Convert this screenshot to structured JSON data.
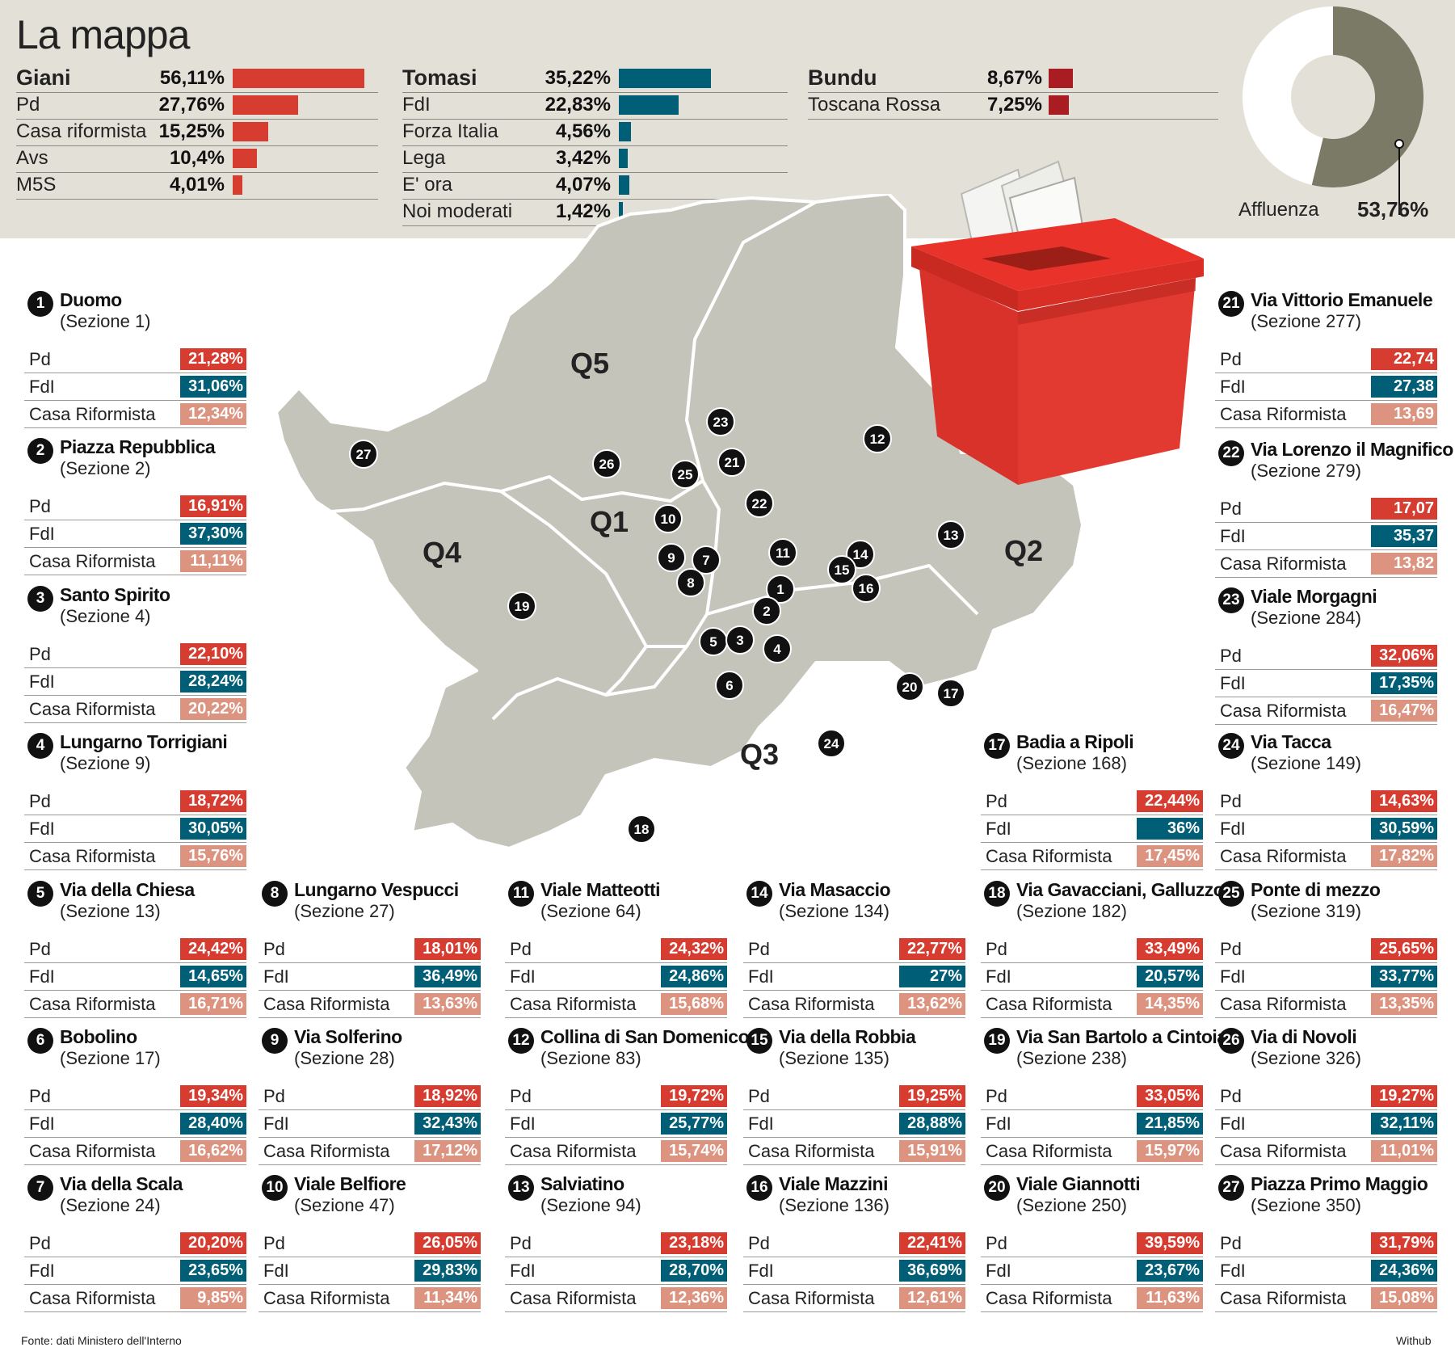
{
  "header": {
    "title": "La mappa"
  },
  "summary": {
    "groups": [
      {
        "rows": [
          {
            "name": "Giani",
            "pct": "56,11%",
            "value": 56.11,
            "lead": true
          },
          {
            "name": "Pd",
            "pct": "27,76%",
            "value": 27.76
          },
          {
            "name": "Casa riformista",
            "pct": "15,25%",
            "value": 15.25
          },
          {
            "name": "Avs",
            "pct": "10,4%",
            "value": 10.4
          },
          {
            "name": "M5S",
            "pct": "4,01%",
            "value": 4.01
          }
        ],
        "color": "#d63c30"
      },
      {
        "rows": [
          {
            "name": "Tomasi",
            "pct": "35,22%",
            "value": 35.22,
            "lead": true
          },
          {
            "name": "FdI",
            "pct": "22,83%",
            "value": 22.83
          },
          {
            "name": "Forza Italia",
            "pct": "4,56%",
            "value": 4.56
          },
          {
            "name": "Lega",
            "pct": "3,42%",
            "value": 3.42
          },
          {
            "name": "E' ora",
            "pct": "4,07%",
            "value": 4.07
          },
          {
            "name": "Noi moderati",
            "pct": "1,42%",
            "value": 1.42
          }
        ],
        "color": "#005e77"
      },
      {
        "rows": [
          {
            "name": "Bundu",
            "pct": "8,67%",
            "value": 8.67,
            "lead": true
          },
          {
            "name": "Toscana Rossa",
            "pct": "7,25%",
            "value": 7.25
          }
        ],
        "color": "#a81c22"
      }
    ]
  },
  "turnout": {
    "label": "Affluenza",
    "value_text": "53,76%",
    "value": 53.76,
    "color": "#7b7a66"
  },
  "map": {
    "quarters": [
      "Q5",
      "Q1",
      "Q4",
      "Q2",
      "Q3"
    ],
    "markers": [
      "27",
      "26",
      "23",
      "25",
      "21",
      "22",
      "12",
      "10",
      "9",
      "7",
      "8",
      "11",
      "14",
      "15",
      "16",
      "13",
      "1",
      "2",
      "19",
      "5",
      "3",
      "4",
      "6",
      "20",
      "17",
      "24",
      "18"
    ]
  },
  "chart_data": {
    "type": "table",
    "columns": [
      "Pd",
      "FdI",
      "Casa Riformista"
    ],
    "colors": {
      "Pd": "#d63c30",
      "FdI": "#005e77",
      "Casa Riformista": "#dc9480"
    },
    "sections": [
      {
        "num": "1",
        "name": "Duomo",
        "sezione": "(Sezione 1)",
        "pd": "21,28%",
        "fdi": "31,06%",
        "cr": "12,34%"
      },
      {
        "num": "2",
        "name": "Piazza Repubblica",
        "sezione": "(Sezione 2)",
        "pd": "16,91%",
        "fdi": "37,30%",
        "cr": "11,11%"
      },
      {
        "num": "3",
        "name": "Santo Spirito",
        "sezione": "(Sezione 4)",
        "pd": "22,10%",
        "fdi": "28,24%",
        "cr": "20,22%"
      },
      {
        "num": "4",
        "name": "Lungarno Torrigiani",
        "sezione": "(Sezione 9)",
        "pd": "18,72%",
        "fdi": "30,05%",
        "cr": "15,76%"
      },
      {
        "num": "5",
        "name": "Via della Chiesa",
        "sezione": "(Sezione 13)",
        "pd": "24,42%",
        "fdi": "14,65%",
        "cr": "16,71%"
      },
      {
        "num": "6",
        "name": "Bobolino",
        "sezione": "(Sezione 17)",
        "pd": "19,34%",
        "fdi": "28,40%",
        "cr": "16,62%"
      },
      {
        "num": "7",
        "name": "Via della Scala",
        "sezione": "(Sezione 24)",
        "pd": "20,20%",
        "fdi": "23,65%",
        "cr": "9,85%"
      },
      {
        "num": "8",
        "name": "Lungarno Vespucci",
        "sezione": "(Sezione 27)",
        "pd": "18,01%",
        "fdi": "36,49%",
        "cr": "13,63%"
      },
      {
        "num": "9",
        "name": "Via Solferino",
        "sezione": "(Sezione 28)",
        "pd": "18,92%",
        "fdi": "32,43%",
        "cr": "17,12%"
      },
      {
        "num": "10",
        "name": "Viale Belfiore",
        "sezione": "(Sezione 47)",
        "pd": "26,05%",
        "fdi": "29,83%",
        "cr": "11,34%"
      },
      {
        "num": "11",
        "name": "Viale Matteotti",
        "sezione": "(Sezione 64)",
        "pd": "24,32%",
        "fdi": "24,86%",
        "cr": "15,68%"
      },
      {
        "num": "12",
        "name": "Collina di San Domenico",
        "sezione": "(Sezione 83)",
        "pd": "19,72%",
        "fdi": "25,77%",
        "cr": "15,74%"
      },
      {
        "num": "13",
        "name": "Salviatino",
        "sezione": "(Sezione 94)",
        "pd": "23,18%",
        "fdi": "28,70%",
        "cr": "12,36%"
      },
      {
        "num": "14",
        "name": "Via Masaccio",
        "sezione": "(Sezione 134)",
        "pd": "22,77%",
        "fdi": "27%",
        "cr": "13,62%"
      },
      {
        "num": "15",
        "name": "Via della Robbia",
        "sezione": "(Sezione 135)",
        "pd": "19,25%",
        "fdi": "28,88%",
        "cr": "15,91%"
      },
      {
        "num": "16",
        "name": "Viale Mazzini",
        "sezione": "(Sezione 136)",
        "pd": "22,41%",
        "fdi": "36,69%",
        "cr": "12,61%"
      },
      {
        "num": "17",
        "name": "Badia a Ripoli",
        "sezione": "(Sezione 168)",
        "pd": "22,44%",
        "fdi": "36%",
        "cr": "17,45%"
      },
      {
        "num": "18",
        "name": "Via Gavacciani, Galluzzo",
        "sezione": "(Sezione 182)",
        "pd": "33,49%",
        "fdi": "20,57%",
        "cr": "14,35%"
      },
      {
        "num": "19",
        "name": "Via San Bartolo a Cintoia",
        "sezione": "(Sezione 238)",
        "pd": "33,05%",
        "fdi": "21,85%",
        "cr": "15,97%"
      },
      {
        "num": "20",
        "name": "Viale Giannotti",
        "sezione": "(Sezione 250)",
        "pd": "39,59%",
        "fdi": "23,67%",
        "cr": "11,63%"
      },
      {
        "num": "21",
        "name": "Via Vittorio Emanuele",
        "sezione": "(Sezione 277)",
        "pd": "22,74",
        "fdi": "27,38",
        "cr": "13,69"
      },
      {
        "num": "22",
        "name": "Via Lorenzo il Magnifico",
        "sezione": "(Sezione 279)",
        "pd": "17,07",
        "fdi": "35,37",
        "cr": "13,82"
      },
      {
        "num": "23",
        "name": "Viale Morgagni",
        "sezione": "(Sezione 284)",
        "pd": "32,06%",
        "fdi": "17,35%",
        "cr": "16,47%"
      },
      {
        "num": "24",
        "name": "Via Tacca",
        "sezione": "(Sezione 149)",
        "pd": "14,63%",
        "fdi": "30,59%",
        "cr": "17,82%"
      },
      {
        "num": "25",
        "name": "Ponte di mezzo",
        "sezione": "(Sezione 319)",
        "pd": "25,65%",
        "fdi": "33,77%",
        "cr": "13,35%"
      },
      {
        "num": "26",
        "name": "Via di Novoli",
        "sezione": "(Sezione 326)",
        "pd": "19,27%",
        "fdi": "32,11%",
        "cr": "11,01%"
      },
      {
        "num": "27",
        "name": "Piazza Primo Maggio",
        "sezione": "(Sezione 350)",
        "pd": "31,79%",
        "fdi": "24,36%",
        "cr": "15,08%"
      }
    ]
  },
  "footer": {
    "source": "Fonte: dati Ministero dell'Interno",
    "credit": "Withub"
  }
}
